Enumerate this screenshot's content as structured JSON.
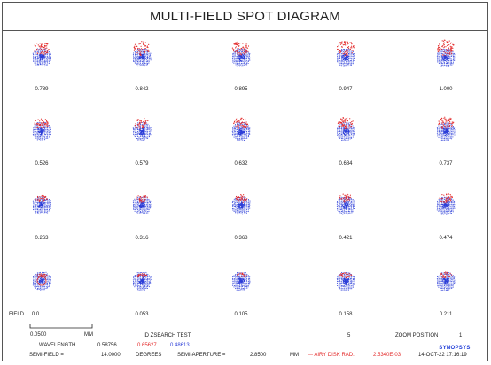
{
  "title": "MULTI-FIELD SPOT DIAGRAM",
  "field_label": "FIELD",
  "field_values": [
    [
      "0.789",
      "0.842",
      "0.895",
      "0.947",
      "1.000"
    ],
    [
      "0.526",
      "0.579",
      "0.632",
      "0.684",
      "0.737"
    ],
    [
      "0.263",
      "0.316",
      "0.368",
      "0.421",
      "0.474"
    ],
    [
      "0.0",
      "0.053",
      "0.105",
      "0.158",
      "0.211"
    ]
  ],
  "scale_bar": {
    "value": "0.0500",
    "unit": "MM"
  },
  "footer": {
    "id_text": "ID ZSEARCH TEST",
    "id_number": "5",
    "zoom_label": "ZOOM POSITION",
    "zoom_value": "1",
    "wavelength_label": "WAVELENGTH",
    "wavelengths": [
      "0.58756",
      "0.65627",
      "0.48613"
    ],
    "semi_field_label": "SEMI-FIELD =",
    "semi_field_value": "14.0000",
    "semi_field_unit": "DEGREES",
    "semi_aperture_label": "SEMI-APERTURE =",
    "semi_aperture_value": "2.8500",
    "semi_aperture_unit": "MM",
    "airy_label": "--- AIRY DISK RAD.",
    "airy_value": "2.5340E-03",
    "date": "14-OCT-22 17:16:19",
    "brand": "SYNOPSYS"
  },
  "colors": {
    "primary": "#2d3fd8",
    "secondary": "#e32b2b",
    "frame": "#555555"
  }
}
